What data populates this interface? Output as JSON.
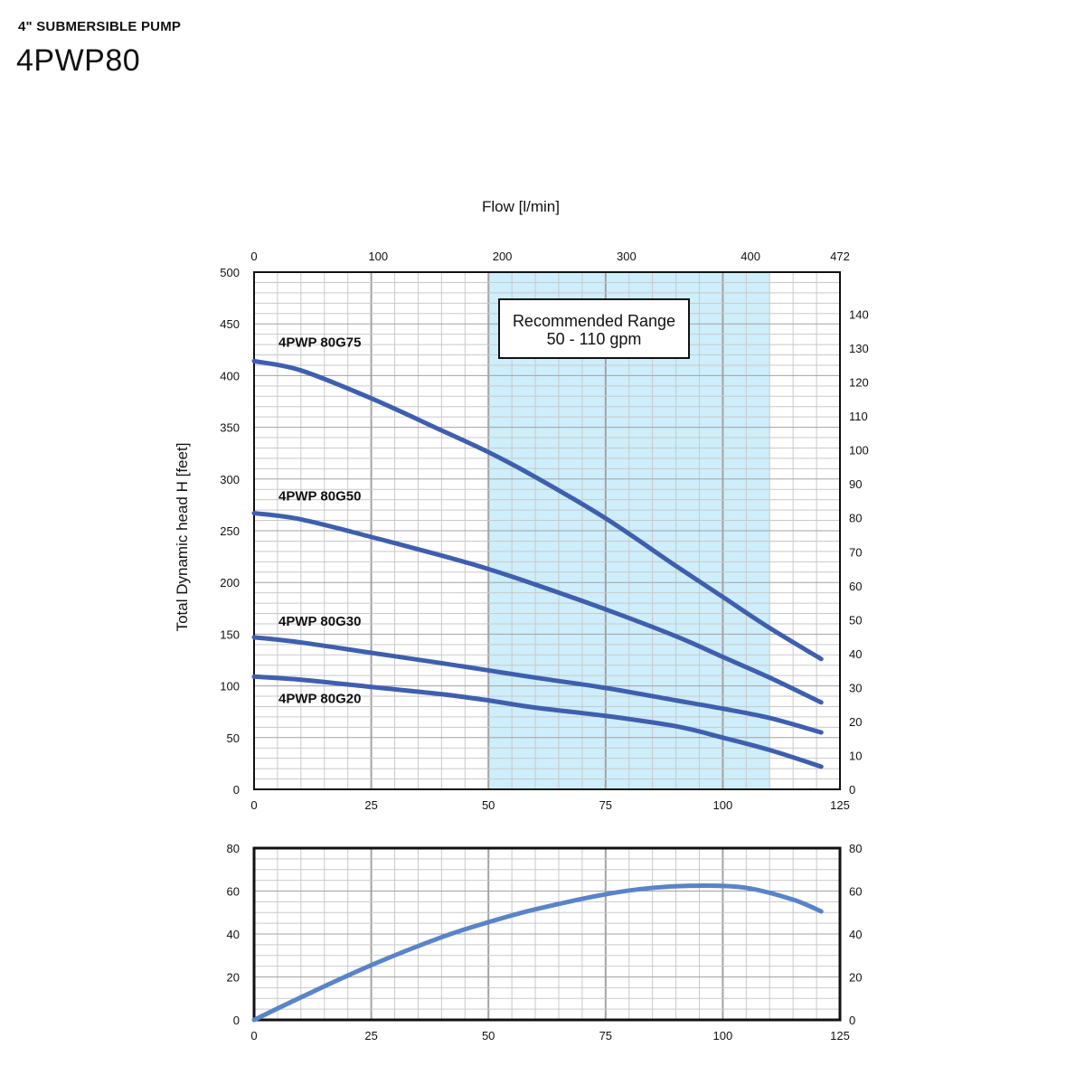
{
  "header": {
    "subtitle": "4\" SUBMERSIBLE PUMP",
    "title": "4PWP80"
  },
  "colors": {
    "curve": "#3f5fae",
    "efficiency": "#5a84c8",
    "range_fill": "#cdeefa",
    "grid_minor": "#c9c9c9",
    "grid_major": "#a3a3a3"
  },
  "chart_data": [
    {
      "type": "line",
      "top_axis": {
        "label": "Flow [l/min]",
        "ticks": [
          0,
          100,
          200,
          300,
          400,
          472
        ],
        "range": [
          0,
          472
        ]
      },
      "xlim": [
        0,
        125
      ],
      "x_ticks": [
        0,
        25,
        50,
        75,
        100,
        125
      ],
      "ylabel": "Total Dynamic head H [feet]",
      "ylim": [
        0,
        500
      ],
      "y_ticks": [
        0,
        50,
        100,
        150,
        200,
        250,
        300,
        350,
        400,
        450,
        500
      ],
      "right_axis": {
        "ticks": [
          0,
          10,
          20,
          30,
          40,
          50,
          60,
          70,
          80,
          90,
          100,
          110,
          120,
          130,
          140
        ],
        "range": [
          0,
          152.4
        ]
      },
      "grid": true,
      "recommended_range": {
        "x_start": 50,
        "x_end": 110,
        "label_line1": "Recommended Range",
        "label_line2": "50 - 110 gpm"
      },
      "series": [
        {
          "name": "4PWP 80G75",
          "x": [
            0,
            10,
            25,
            40,
            50,
            60,
            75,
            90,
            100,
            110,
            121
          ],
          "y": [
            414,
            405,
            378,
            347,
            326,
            302,
            262,
            216,
            186,
            156,
            126
          ]
        },
        {
          "name": "4PWP 80G50",
          "x": [
            0,
            10,
            25,
            40,
            50,
            60,
            75,
            90,
            100,
            110,
            121
          ],
          "y": [
            267,
            261,
            244,
            226,
            213,
            198,
            174,
            148,
            128,
            108,
            84
          ]
        },
        {
          "name": "4PWP 80G30",
          "x": [
            0,
            10,
            25,
            40,
            50,
            60,
            75,
            90,
            100,
            110,
            121
          ],
          "y": [
            147,
            142,
            132,
            122,
            115,
            108,
            98,
            86,
            78,
            69,
            55
          ]
        },
        {
          "name": "4PWP 80G20",
          "x": [
            0,
            10,
            25,
            40,
            50,
            60,
            75,
            90,
            100,
            110,
            121
          ],
          "y": [
            109,
            106,
            99,
            92,
            86,
            79,
            71,
            61,
            50,
            38,
            22
          ]
        }
      ]
    },
    {
      "type": "line",
      "xlim": [
        0,
        125
      ],
      "x_ticks": [
        0,
        25,
        50,
        75,
        100,
        125
      ],
      "ylim": [
        0,
        80
      ],
      "y_ticks": [
        0,
        20,
        40,
        60,
        80
      ],
      "right_ticks": [
        0,
        20,
        40,
        60,
        80
      ],
      "grid": true,
      "series": [
        {
          "name": "",
          "x": [
            0,
            10,
            25,
            40,
            50,
            60,
            75,
            85,
            95,
            105,
            115,
            121
          ],
          "y": [
            0,
            10.5,
            25.5,
            38.5,
            45.5,
            51.5,
            58.5,
            61.5,
            62.5,
            61.5,
            56,
            50.5
          ]
        }
      ]
    }
  ]
}
